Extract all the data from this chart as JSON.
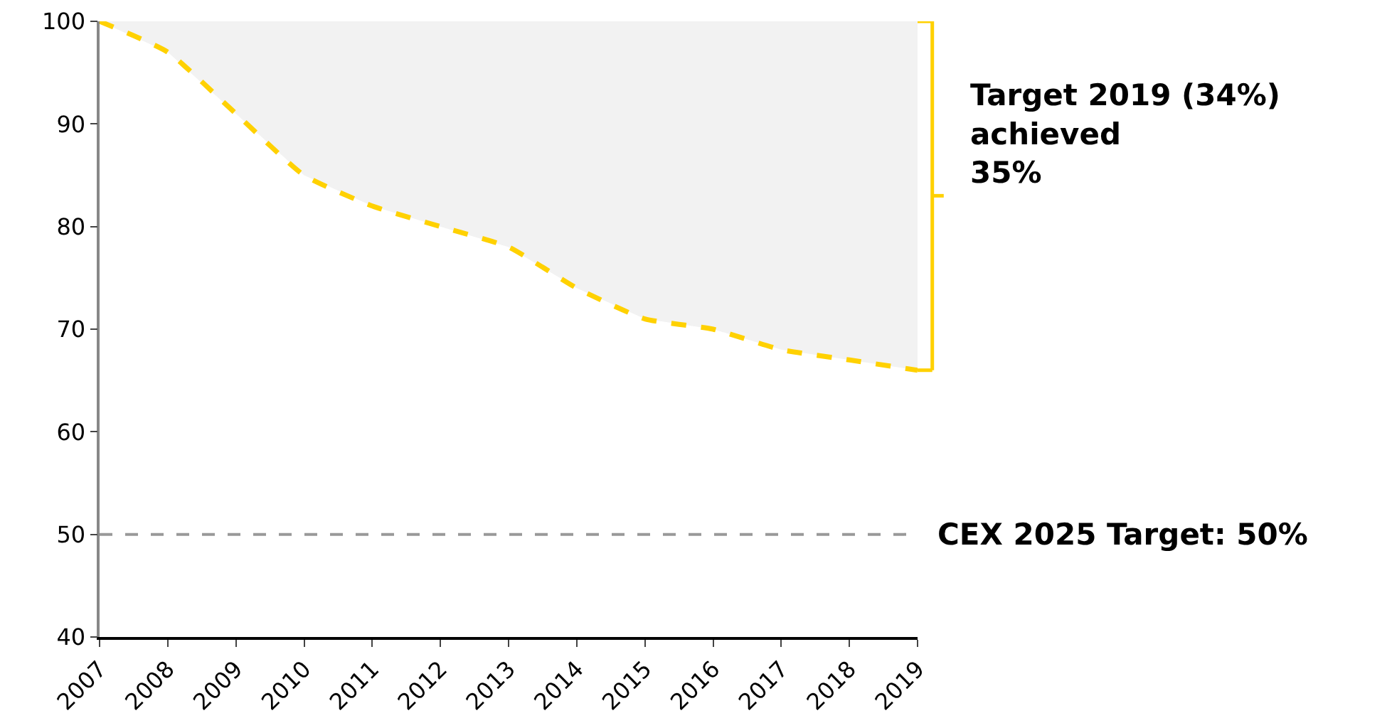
{
  "chart_data": {
    "type": "line",
    "x": [
      2007,
      2008,
      2009,
      2010,
      2011,
      2012,
      2013,
      2014,
      2015,
      2016,
      2017,
      2018,
      2019
    ],
    "series": [
      {
        "color": "#ffd100",
        "values": [
          100,
          97,
          91,
          85,
          82,
          80,
          78,
          74,
          71,
          70,
          68,
          67,
          66
        ],
        "lower": [
          100,
          97,
          91,
          85,
          82,
          80,
          78,
          74,
          71,
          70,
          68,
          67,
          66
        ],
        "upper": [
          100,
          100,
          100,
          100,
          100,
          100,
          100,
          100,
          100,
          100,
          100,
          100,
          100
        ]
      }
    ],
    "line_style": "dashed",
    "marker": "none",
    "grid": false,
    "xlim": [
      2007,
      2019
    ],
    "xticks": [
      2007,
      2008,
      2009,
      2010,
      2011,
      2012,
      2013,
      2014,
      2015,
      2016,
      2017,
      2018,
      2019
    ],
    "ylim": [
      40,
      100
    ],
    "yticks": [
      40,
      50,
      60,
      70,
      80,
      90,
      100
    ],
    "ref_lines": [
      {
        "axis": "y",
        "value": 50,
        "label": "CEX 2025 Target: 50%",
        "color": "#999999",
        "line_style": "dashed"
      }
    ],
    "annotations": [
      {
        "text": "Target 2019 (34%)\nachieved\n35%",
        "x": 2019,
        "y": 83
      }
    ]
  }
}
